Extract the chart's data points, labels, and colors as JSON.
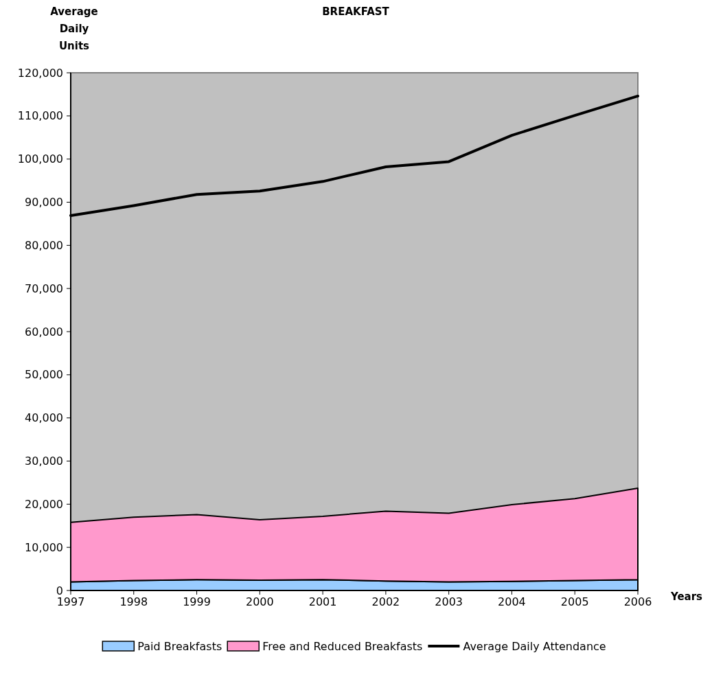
{
  "chart_data": {
    "type": "area",
    "title": "BREAKFAST",
    "xlabel": "Years",
    "ylabel": "Average Daily Units",
    "categories": [
      "1997",
      "1998",
      "1999",
      "2000",
      "2001",
      "2002",
      "2003",
      "2004",
      "2005",
      "2006"
    ],
    "series": [
      {
        "name": "Paid Breakfasts",
        "color": "#99ccff",
        "values": [
          2000,
          2300,
          2500,
          2400,
          2500,
          2200,
          2000,
          2100,
          2300,
          2500
        ]
      },
      {
        "name": "Free and Reduced Breakfasts",
        "color": "#ff99cc",
        "values": [
          13800,
          14700,
          15100,
          14000,
          14700,
          16200,
          15900,
          17800,
          19000,
          21200
        ]
      },
      {
        "name": "Average Daily Attendance",
        "type": "line",
        "color": "#000000",
        "values": [
          86900,
          89200,
          91800,
          92600,
          94800,
          98200,
          99400,
          105500,
          110100,
          114600
        ]
      }
    ],
    "stacked": true,
    "ylim": [
      0,
      120000
    ],
    "yticks": [
      0,
      {
        "value": 10000,
        "label": "10,000"
      },
      {
        "value": 20000,
        "label": "20,000"
      },
      {
        "value": 30000,
        "label": "30,000"
      },
      {
        "value": 40000,
        "label": "40,000"
      },
      {
        "value": 50000,
        "label": "50,000"
      },
      {
        "value": 60000,
        "label": "60,000"
      },
      {
        "value": 70000,
        "label": "70,000"
      },
      {
        "value": 80000,
        "label": "80,000"
      },
      {
        "value": 90000,
        "label": "90,000"
      },
      {
        "value": 100000,
        "label": "100,000"
      },
      {
        "value": 110000,
        "label": "110,000"
      },
      {
        "value": 120000,
        "label": "120,000"
      }
    ],
    "legend": "bottom"
  }
}
